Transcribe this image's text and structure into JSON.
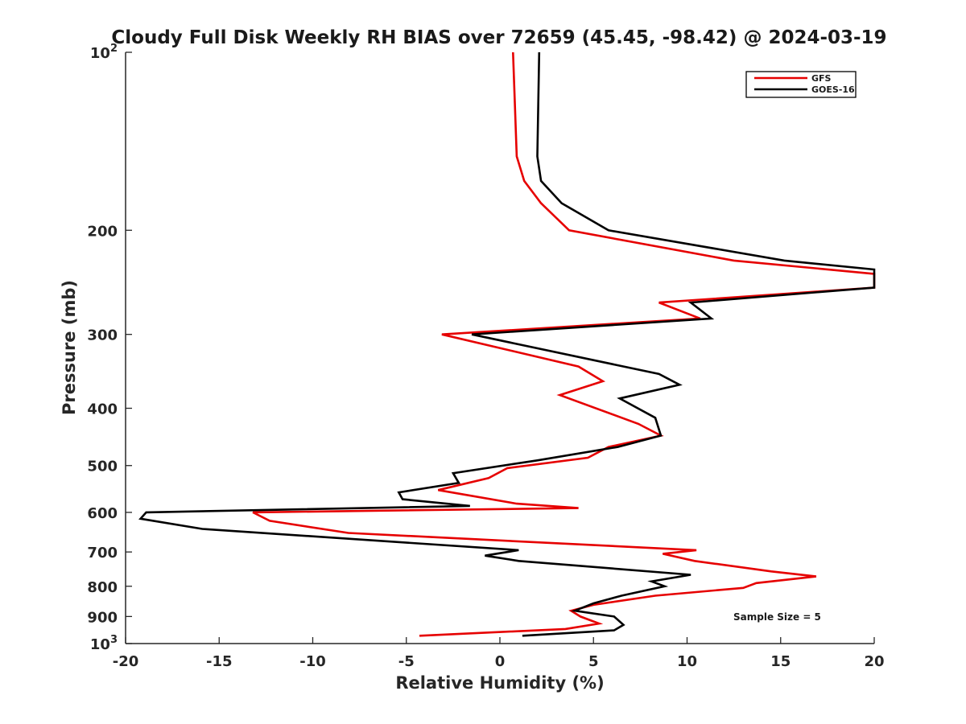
{
  "chart_data": {
    "type": "line",
    "title": "Cloudy Full Disk Weekly RH BIAS over 72659 (45.45, -98.42) @ 2024-03-19",
    "xlabel": "Relative Humidity (%)",
    "ylabel": "Pressure (mb)",
    "xlim": [
      -20,
      20
    ],
    "ylim": [
      100,
      1000
    ],
    "yscale": "log",
    "y_reversed": true,
    "x_ticks": [
      -20,
      -15,
      -10,
      -5,
      0,
      5,
      10,
      15,
      20
    ],
    "x_tick_labels": [
      "-20",
      "-15",
      "-10",
      "-5",
      "0",
      "5",
      "10",
      "15",
      "20"
    ],
    "y_ticks": [
      100,
      200,
      300,
      400,
      500,
      600,
      700,
      800,
      900,
      1000
    ],
    "y_tick_labels": [
      {
        "base": "10",
        "exp": "2"
      },
      {
        "base": "200",
        "exp": ""
      },
      {
        "base": "300",
        "exp": ""
      },
      {
        "base": "400",
        "exp": ""
      },
      {
        "base": "500",
        "exp": ""
      },
      {
        "base": "600",
        "exp": ""
      },
      {
        "base": "700",
        "exp": ""
      },
      {
        "base": "800",
        "exp": ""
      },
      {
        "base": "900",
        "exp": ""
      },
      {
        "base": "10",
        "exp": "3"
      }
    ],
    "grid": false,
    "legend_position": "top-right",
    "annotation": "Sample Size = 5",
    "series": [
      {
        "name": "GFS",
        "color": "#e60000",
        "points": [
          [
            0.7,
            100
          ],
          [
            0.9,
            150
          ],
          [
            1.3,
            165
          ],
          [
            2.2,
            180
          ],
          [
            3.7,
            200
          ],
          [
            12.5,
            225
          ],
          [
            20,
            237
          ],
          [
            20,
            250
          ],
          [
            8.5,
            265
          ],
          [
            10.7,
            282
          ],
          [
            -3.1,
            300
          ],
          [
            4.2,
            340
          ],
          [
            5.5,
            360
          ],
          [
            3.2,
            380
          ],
          [
            7.4,
            425
          ],
          [
            8.6,
            445
          ],
          [
            5.8,
            465
          ],
          [
            4.7,
            485
          ],
          [
            0.4,
            505
          ],
          [
            -0.6,
            525
          ],
          [
            -3.3,
            550
          ],
          [
            0.9,
            580
          ],
          [
            4.2,
            590
          ],
          [
            -13.2,
            600
          ],
          [
            -12.3,
            620
          ],
          [
            -8.1,
            650
          ],
          [
            10.5,
            695
          ],
          [
            8.7,
            705
          ],
          [
            10.4,
            725
          ],
          [
            14.5,
            755
          ],
          [
            16.9,
            770
          ],
          [
            13.7,
            790
          ],
          [
            13.0,
            805
          ],
          [
            8.3,
            830
          ],
          [
            5.0,
            860
          ],
          [
            3.8,
            880
          ],
          [
            4.3,
            900
          ],
          [
            5.3,
            925
          ],
          [
            3.5,
            945
          ],
          [
            -4.3,
            970
          ]
        ]
      },
      {
        "name": "GOES-16",
        "color": "#000000",
        "points": [
          [
            2.1,
            100
          ],
          [
            2.0,
            150
          ],
          [
            2.2,
            165
          ],
          [
            3.3,
            180
          ],
          [
            5.8,
            200
          ],
          [
            15.2,
            225
          ],
          [
            20,
            233
          ],
          [
            20,
            250
          ],
          [
            10.2,
            265
          ],
          [
            11.3,
            282
          ],
          [
            -1.5,
            300
          ],
          [
            8.5,
            350
          ],
          [
            9.6,
            365
          ],
          [
            6.4,
            385
          ],
          [
            8.3,
            415
          ],
          [
            8.6,
            445
          ],
          [
            6.3,
            465
          ],
          [
            2.0,
            490
          ],
          [
            -2.5,
            515
          ],
          [
            -2.2,
            535
          ],
          [
            -5.4,
            555
          ],
          [
            -5.2,
            570
          ],
          [
            -1.6,
            585
          ],
          [
            -18.9,
            600
          ],
          [
            -19.2,
            615
          ],
          [
            -15.9,
            640
          ],
          [
            1.0,
            695
          ],
          [
            -0.8,
            710
          ],
          [
            1.0,
            725
          ],
          [
            10.2,
            765
          ],
          [
            8.1,
            785
          ],
          [
            8.8,
            800
          ],
          [
            6.5,
            830
          ],
          [
            5.0,
            855
          ],
          [
            4.0,
            880
          ],
          [
            6.1,
            900
          ],
          [
            6.6,
            930
          ],
          [
            6.1,
            950
          ],
          [
            1.2,
            970
          ]
        ]
      }
    ]
  }
}
